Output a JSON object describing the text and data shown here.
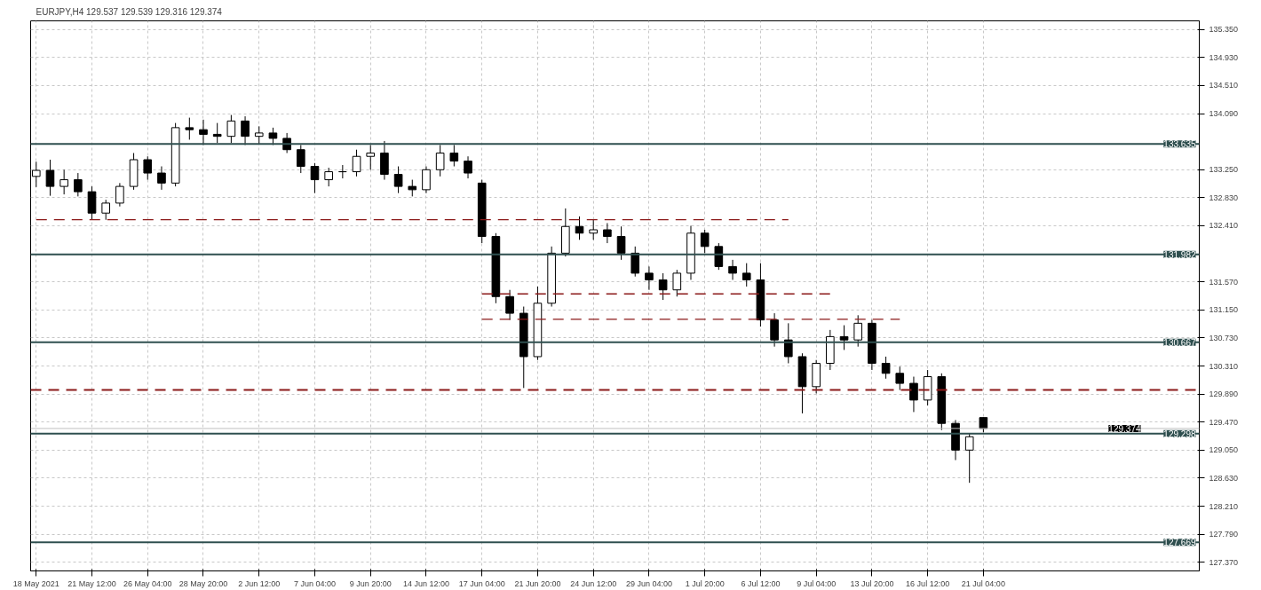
{
  "chart_data": {
    "type": "candlestick",
    "title": "EURJPY,H4 129.537 129.539 129.316 129.374",
    "categories": [
      "18 May 2021",
      null,
      null,
      null,
      "21 May 12:00",
      null,
      null,
      null,
      "26 May 04:00",
      null,
      null,
      null,
      "28 May 20:00",
      null,
      null,
      null,
      "2 Jun 12:00",
      null,
      null,
      null,
      "7 Jun 04:00",
      null,
      null,
      null,
      "9 Jun 20:00",
      null,
      null,
      null,
      "14 Jun 12:00",
      null,
      null,
      null,
      "17 Jun 04:00",
      null,
      null,
      null,
      "21 Jun 20:00",
      null,
      null,
      null,
      "24 Jun 12:00",
      null,
      null,
      null,
      "29 Jun 04:00",
      null,
      null,
      null,
      "1 Jul 20:00",
      null,
      null,
      null,
      "6 Jul 12:00",
      null,
      null,
      null,
      "9 Jul 04:00",
      null,
      null,
      null,
      "13 Jul 20:00",
      null,
      null,
      null,
      "16 Jul 12:00",
      null,
      null,
      null,
      "21 Jul 04:00"
    ],
    "ohlc": [
      [
        133.15,
        133.37,
        132.99,
        133.24
      ],
      [
        133.24,
        133.4,
        132.86,
        133.0
      ],
      [
        133.0,
        133.25,
        132.88,
        133.1
      ],
      [
        133.1,
        133.2,
        132.85,
        132.92
      ],
      [
        132.92,
        133.0,
        132.5,
        132.6
      ],
      [
        132.6,
        132.8,
        132.5,
        132.75
      ],
      [
        132.75,
        133.05,
        132.7,
        133.0
      ],
      [
        133.0,
        133.5,
        132.95,
        133.4
      ],
      [
        133.4,
        133.45,
        133.1,
        133.2
      ],
      [
        133.2,
        133.3,
        132.95,
        133.05
      ],
      [
        133.05,
        133.95,
        133.0,
        133.88
      ],
      [
        133.88,
        134.03,
        133.7,
        133.85
      ],
      [
        133.85,
        134.0,
        133.62,
        133.78
      ],
      [
        133.78,
        133.95,
        133.65,
        133.75
      ],
      [
        133.75,
        134.07,
        133.65,
        133.98
      ],
      [
        133.98,
        134.05,
        133.62,
        133.75
      ],
      [
        133.75,
        133.9,
        133.63,
        133.8
      ],
      [
        133.8,
        133.88,
        133.62,
        133.72
      ],
      [
        133.72,
        133.8,
        133.5,
        133.55
      ],
      [
        133.55,
        133.62,
        133.2,
        133.3
      ],
      [
        133.3,
        133.35,
        132.9,
        133.1
      ],
      [
        133.1,
        133.28,
        133.0,
        133.22
      ],
      [
        133.22,
        133.32,
        133.12,
        133.22
      ],
      [
        133.22,
        133.55,
        133.15,
        133.45
      ],
      [
        133.45,
        133.62,
        133.25,
        133.5
      ],
      [
        133.5,
        133.68,
        133.1,
        133.18
      ],
      [
        133.18,
        133.3,
        132.9,
        133.0
      ],
      [
        133.0,
        133.1,
        132.85,
        132.95
      ],
      [
        132.95,
        133.3,
        132.9,
        133.25
      ],
      [
        133.25,
        133.62,
        133.15,
        133.5
      ],
      [
        133.5,
        133.62,
        133.3,
        133.38
      ],
      [
        133.38,
        133.45,
        133.12,
        133.2
      ],
      [
        133.05,
        133.1,
        132.15,
        132.25
      ],
      [
        132.25,
        132.3,
        131.25,
        131.35
      ],
      [
        131.35,
        131.45,
        131.0,
        131.1
      ],
      [
        131.1,
        131.2,
        129.98,
        130.45
      ],
      [
        130.45,
        131.5,
        130.4,
        131.25
      ],
      [
        131.25,
        132.1,
        131.2,
        132.0
      ],
      [
        132.0,
        132.67,
        131.95,
        132.4
      ],
      [
        132.4,
        132.55,
        132.2,
        132.3
      ],
      [
        132.3,
        132.5,
        132.2,
        132.35
      ],
      [
        132.35,
        132.45,
        132.15,
        132.25
      ],
      [
        132.25,
        132.4,
        131.9,
        132.0
      ],
      [
        132.0,
        132.1,
        131.65,
        131.7
      ],
      [
        131.7,
        131.8,
        131.45,
        131.6
      ],
      [
        131.6,
        131.7,
        131.3,
        131.45
      ],
      [
        131.45,
        131.75,
        131.35,
        131.7
      ],
      [
        131.7,
        132.41,
        131.6,
        132.3
      ],
      [
        132.3,
        132.35,
        132.0,
        132.1
      ],
      [
        132.1,
        132.15,
        131.75,
        131.8
      ],
      [
        131.8,
        131.9,
        131.6,
        131.7
      ],
      [
        131.7,
        131.85,
        131.5,
        131.6
      ],
      [
        131.6,
        131.85,
        130.9,
        131.0
      ],
      [
        131.0,
        131.1,
        130.6,
        130.7
      ],
      [
        130.7,
        130.95,
        130.35,
        130.45
      ],
      [
        130.45,
        130.5,
        129.6,
        130.0
      ],
      [
        130.0,
        130.4,
        129.9,
        130.35
      ],
      [
        130.35,
        130.85,
        130.25,
        130.75
      ],
      [
        130.75,
        130.92,
        130.55,
        130.7
      ],
      [
        130.7,
        131.07,
        130.6,
        130.95
      ],
      [
        130.95,
        131.0,
        130.25,
        130.35
      ],
      [
        130.35,
        130.45,
        130.12,
        130.2
      ],
      [
        130.2,
        130.3,
        129.95,
        130.05
      ],
      [
        130.05,
        130.15,
        129.62,
        129.8
      ],
      [
        129.8,
        130.25,
        129.72,
        130.15
      ],
      [
        130.15,
        130.2,
        129.35,
        129.45
      ],
      [
        129.45,
        129.5,
        128.9,
        129.05
      ],
      [
        129.05,
        129.3,
        128.56,
        129.25
      ],
      [
        129.537,
        129.539,
        129.316,
        129.374
      ]
    ],
    "series": [
      {
        "type": "line",
        "values": [
          132.5,
          132.5,
          132.5,
          132.5,
          132.5,
          132.5,
          132.5,
          132.5,
          132.5,
          132.5,
          132.5,
          132.5,
          132.5,
          132.5,
          132.5,
          132.5,
          132.5,
          132.5,
          132.5,
          132.5,
          132.5,
          132.5,
          132.5,
          132.5,
          132.5,
          132.5,
          132.5,
          132.5,
          132.5,
          132.5,
          132.5,
          132.5,
          132.5,
          132.5,
          132.5,
          132.5,
          132.5,
          132.5,
          132.5,
          132.5,
          132.5,
          132.5,
          132.5,
          132.5,
          132.5,
          132.5,
          132.5,
          132.5,
          132.5,
          132.5,
          132.5,
          132.5,
          132.5,
          132.5,
          132.5,
          null,
          null,
          null,
          null,
          null,
          null,
          null,
          null,
          null,
          null,
          null,
          null,
          null,
          null
        ],
        "color": "#8b1a1a",
        "line_style": "dashed"
      },
      {
        "type": "line",
        "values": [
          null,
          null,
          null,
          null,
          null,
          null,
          null,
          null,
          null,
          null,
          null,
          null,
          null,
          null,
          null,
          null,
          null,
          null,
          null,
          null,
          null,
          null,
          null,
          null,
          null,
          null,
          null,
          null,
          null,
          null,
          null,
          null,
          131.39,
          131.39,
          131.39,
          131.39,
          131.39,
          131.39,
          131.39,
          131.39,
          131.39,
          131.39,
          131.39,
          131.39,
          131.39,
          131.39,
          131.39,
          131.39,
          131.39,
          131.39,
          131.39,
          131.39,
          131.39,
          131.39,
          131.39,
          131.39,
          131.39,
          131.39,
          null,
          null,
          null,
          null,
          null,
          null,
          null,
          null,
          null,
          null,
          null
        ],
        "color": "#8b1a1a",
        "line_style": "dashed"
      },
      {
        "type": "line",
        "values": [
          null,
          null,
          null,
          null,
          null,
          null,
          null,
          null,
          null,
          null,
          null,
          null,
          null,
          null,
          null,
          null,
          null,
          null,
          null,
          null,
          null,
          null,
          null,
          null,
          null,
          null,
          null,
          null,
          null,
          null,
          null,
          null,
          131.01,
          131.01,
          131.01,
          131.01,
          131.01,
          131.01,
          131.01,
          131.01,
          131.01,
          131.01,
          131.01,
          131.01,
          131.01,
          131.01,
          131.01,
          131.01,
          131.01,
          131.01,
          131.01,
          131.01,
          131.01,
          131.01,
          131.01,
          131.01,
          131.01,
          131.01,
          131.01,
          131.01,
          131.01,
          131.01,
          131.01,
          null,
          null,
          null,
          null,
          null,
          null
        ],
        "color": "#8b1a1a",
        "line_style": "dashed"
      }
    ],
    "ref_lines": [
      {
        "axis": "y",
        "value": 133.635,
        "label": "133.635",
        "color": "#2f4f4f",
        "line_style": "solid"
      },
      {
        "axis": "y",
        "value": 131.982,
        "label": "131.982",
        "color": "#2f4f4f",
        "line_style": "solid"
      },
      {
        "axis": "y",
        "value": 130.667,
        "label": "130.667",
        "color": "#2f4f4f",
        "line_style": "solid"
      },
      {
        "axis": "y",
        "value": 129.374,
        "label": "129.374",
        "color": "#c0c0c0",
        "line_style": "solid"
      },
      {
        "axis": "y",
        "value": 129.298,
        "label": "129.298",
        "color": "#2f4f4f",
        "line_style": "solid"
      },
      {
        "axis": "y",
        "value": 127.669,
        "label": "127.669",
        "color": "#2f4f4f",
        "line_style": "solid"
      },
      {
        "axis": "y",
        "value": 129.95,
        "color": "#8b1a1a",
        "line_style": "dashed"
      }
    ],
    "ylim": [
      127.24,
      135.48
    ],
    "yticks": [
      {
        "value": 127.37,
        "label": "127.370"
      },
      {
        "value": 127.79,
        "label": "127.790"
      },
      {
        "value": 128.21,
        "label": "128.210"
      },
      {
        "value": 128.63,
        "label": "128.630"
      },
      {
        "value": 129.05,
        "label": "129.050"
      },
      {
        "value": 129.47,
        "label": "129.470"
      },
      {
        "value": 129.89,
        "label": "129.890"
      },
      {
        "value": 130.31,
        "label": "130.310"
      },
      {
        "value": 130.73,
        "label": "130.730"
      },
      {
        "value": 131.15,
        "label": "131.150"
      },
      {
        "value": 131.57,
        "label": "131.570"
      },
      {
        "value": 132.41,
        "label": "132.410"
      },
      {
        "value": 132.83,
        "label": "132.830"
      },
      {
        "value": 133.25,
        "label": "133.250"
      },
      {
        "value": 134.09,
        "label": "134.090"
      },
      {
        "value": 134.51,
        "label": "134.510"
      },
      {
        "value": 134.93,
        "label": "134.930"
      },
      {
        "value": 135.35,
        "label": "135.350"
      }
    ],
    "grid": true
  }
}
